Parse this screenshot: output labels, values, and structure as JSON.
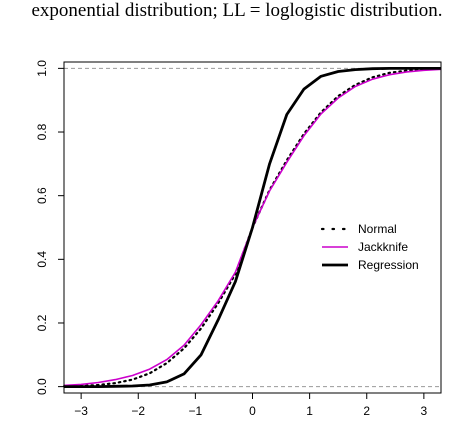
{
  "caption": "exponential distribution; LL = loglogistic distribution.",
  "chart_data": {
    "type": "line",
    "title": "",
    "xlabel": "",
    "ylabel": "",
    "xlim": [
      -3.3,
      3.3
    ],
    "ylim": [
      -0.02,
      1.02
    ],
    "x_ticks": [
      -3,
      -2,
      -1,
      0,
      1,
      2,
      3
    ],
    "x_tick_labels": [
      "−3",
      "−2",
      "−1",
      "0",
      "1",
      "2",
      "3"
    ],
    "y_ticks": [
      0.0,
      0.2,
      0.4,
      0.6,
      0.8,
      1.0
    ],
    "y_tick_labels": [
      "0.0",
      "0.2",
      "0.4",
      "0.6",
      "0.8",
      "1.0"
    ],
    "reference_lines": [
      0,
      1
    ],
    "legend_position": "right",
    "colors": {
      "normal": "#000000",
      "jackknife": "#cc00cc",
      "regression": "#000000",
      "reference": "#999999"
    },
    "x": [
      -3.3,
      -3.0,
      -2.7,
      -2.4,
      -2.1,
      -1.8,
      -1.5,
      -1.2,
      -0.9,
      -0.6,
      -0.3,
      0.0,
      0.3,
      0.6,
      0.9,
      1.2,
      1.5,
      1.8,
      2.1,
      2.4,
      2.7,
      3.0,
      3.3
    ],
    "series": [
      {
        "name": "Normal",
        "style": "dotted",
        "values": [
          0.001,
          0.002,
          0.005,
          0.011,
          0.022,
          0.042,
          0.074,
          0.12,
          0.183,
          0.262,
          0.354,
          0.5,
          0.618,
          0.711,
          0.794,
          0.862,
          0.913,
          0.948,
          0.972,
          0.986,
          0.993,
          0.997,
          0.999
        ]
      },
      {
        "name": "Jackknife",
        "style": "solid",
        "values": [
          0.004,
          0.007,
          0.013,
          0.022,
          0.035,
          0.055,
          0.085,
          0.13,
          0.195,
          0.27,
          0.36,
          0.5,
          0.615,
          0.705,
          0.788,
          0.857,
          0.907,
          0.943,
          0.966,
          0.98,
          0.989,
          0.994,
          0.997
        ]
      },
      {
        "name": "Regression",
        "style": "solid-thick",
        "values": [
          0.0,
          0.0,
          0.0,
          0.001,
          0.002,
          0.005,
          0.015,
          0.04,
          0.1,
          0.21,
          0.33,
          0.5,
          0.7,
          0.855,
          0.935,
          0.975,
          0.99,
          0.996,
          0.999,
          1.0,
          1.0,
          1.0,
          1.0
        ]
      }
    ]
  }
}
